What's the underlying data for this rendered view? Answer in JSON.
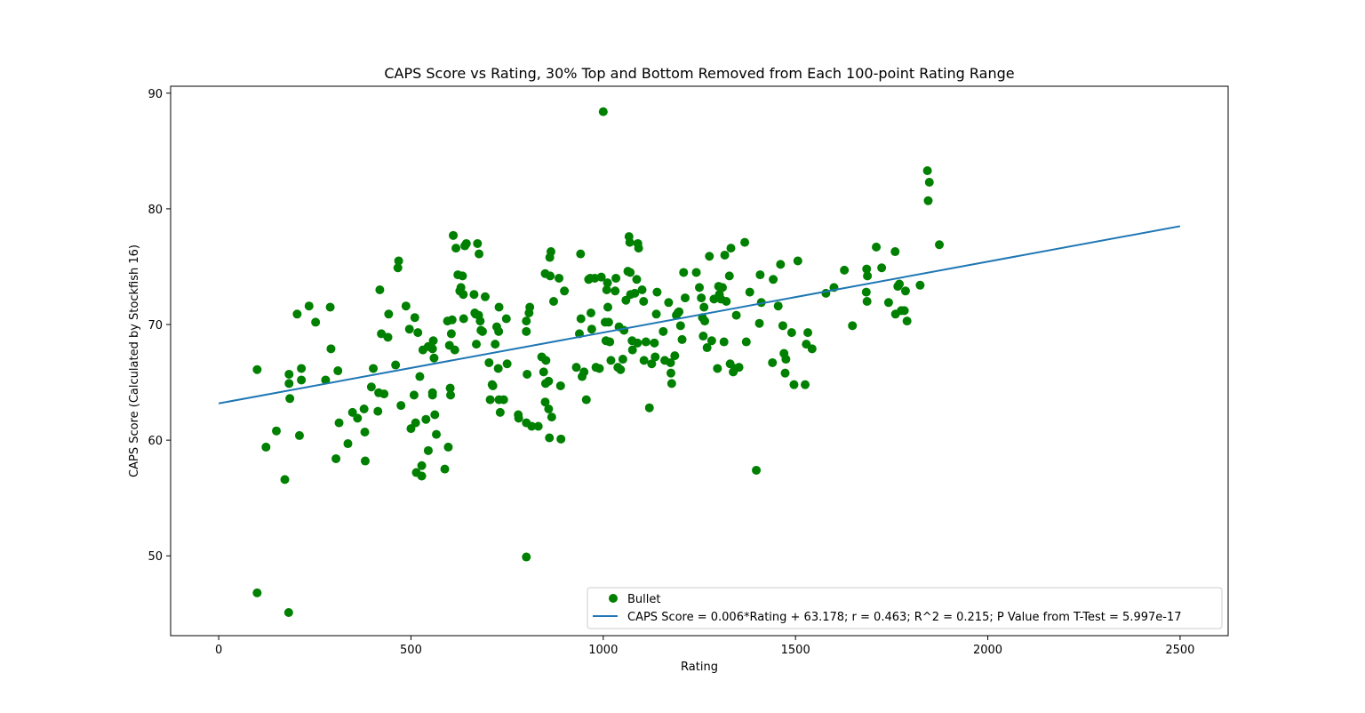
{
  "chart_data": {
    "type": "scatter",
    "title": "CAPS Score vs Rating, 30% Top and Bottom Removed from Each 100-point Rating Range",
    "xlabel": "Rating",
    "ylabel": "CAPS Score (Calculated by Stockfish 16)",
    "xlim": [
      -125,
      2625
    ],
    "ylim": [
      43.1,
      90.6
    ],
    "xticks": [
      0,
      500,
      1000,
      1500,
      2000,
      2500
    ],
    "yticks": [
      50,
      60,
      70,
      80,
      90
    ],
    "grid": false,
    "legend_position": "lower-right",
    "series": [
      {
        "name": "Bullet",
        "kind": "scatter",
        "color": "#008000",
        "points": [
          [
            100,
            66.1
          ],
          [
            100,
            46.8
          ],
          [
            123,
            59.4
          ],
          [
            150,
            60.8
          ],
          [
            172,
            56.6
          ],
          [
            182,
            45.1
          ],
          [
            183,
            65.7
          ],
          [
            183,
            64.9
          ],
          [
            185,
            63.6
          ],
          [
            204,
            70.9
          ],
          [
            210,
            60.4
          ],
          [
            215,
            66.2
          ],
          [
            215,
            65.2
          ],
          [
            235,
            71.6
          ],
          [
            252,
            70.2
          ],
          [
            278,
            65.2
          ],
          [
            290,
            71.5
          ],
          [
            292,
            67.9
          ],
          [
            305,
            58.4
          ],
          [
            310,
            66.0
          ],
          [
            313,
            61.5
          ],
          [
            336,
            59.7
          ],
          [
            348,
            62.4
          ],
          [
            361,
            61.9
          ],
          [
            378,
            62.7
          ],
          [
            380,
            60.7
          ],
          [
            381,
            58.2
          ],
          [
            397,
            64.6
          ],
          [
            402,
            66.2
          ],
          [
            414,
            62.5
          ],
          [
            416,
            64.1
          ],
          [
            419,
            73.0
          ],
          [
            423,
            69.2
          ],
          [
            430,
            64.0
          ],
          [
            440,
            68.9
          ],
          [
            442,
            70.9
          ],
          [
            460,
            66.5
          ],
          [
            466,
            74.9
          ],
          [
            468,
            75.5
          ],
          [
            474,
            63.0
          ],
          [
            487,
            71.6
          ],
          [
            496,
            69.6
          ],
          [
            500,
            61.0
          ],
          [
            508,
            63.9
          ],
          [
            510,
            70.6
          ],
          [
            512,
            61.5
          ],
          [
            514,
            57.2
          ],
          [
            518,
            69.3
          ],
          [
            523,
            65.5
          ],
          [
            528,
            57.8
          ],
          [
            528,
            56.9
          ],
          [
            531,
            67.8
          ],
          [
            539,
            61.8
          ],
          [
            545,
            59.1
          ],
          [
            545,
            68.1
          ],
          [
            556,
            63.9
          ],
          [
            556,
            64.1
          ],
          [
            556,
            67.9
          ],
          [
            558,
            68.6
          ],
          [
            560,
            67.1
          ],
          [
            562,
            62.2
          ],
          [
            566,
            60.5
          ],
          [
            588,
            57.5
          ],
          [
            595,
            70.3
          ],
          [
            597,
            59.4
          ],
          [
            600,
            68.2
          ],
          [
            602,
            64.5
          ],
          [
            603,
            63.9
          ],
          [
            605,
            69.2
          ],
          [
            607,
            70.4
          ],
          [
            610,
            77.7
          ],
          [
            614,
            67.8
          ],
          [
            617,
            76.6
          ],
          [
            622,
            74.3
          ],
          [
            627,
            72.9
          ],
          [
            630,
            73.2
          ],
          [
            634,
            74.2
          ],
          [
            636,
            72.6
          ],
          [
            637,
            70.5
          ],
          [
            640,
            76.8
          ],
          [
            644,
            77.0
          ],
          [
            664,
            72.6
          ],
          [
            666,
            71.0
          ],
          [
            668,
            70.9
          ],
          [
            670,
            68.3
          ],
          [
            673,
            77.0
          ],
          [
            676,
            70.8
          ],
          [
            677,
            76.1
          ],
          [
            680,
            70.3
          ],
          [
            682,
            69.5
          ],
          [
            686,
            69.4
          ],
          [
            693,
            72.4
          ],
          [
            703,
            66.7
          ],
          [
            706,
            63.5
          ],
          [
            711,
            64.8
          ],
          [
            713,
            64.7
          ],
          [
            719,
            68.3
          ],
          [
            723,
            69.8
          ],
          [
            727,
            66.2
          ],
          [
            728,
            69.4
          ],
          [
            729,
            71.5
          ],
          [
            729,
            63.5
          ],
          [
            732,
            62.4
          ],
          [
            741,
            63.5
          ],
          [
            748,
            70.5
          ],
          [
            750,
            66.6
          ],
          [
            779,
            62.2
          ],
          [
            780,
            61.9
          ],
          [
            800,
            49.9
          ],
          [
            800,
            69.4
          ],
          [
            800,
            70.3
          ],
          [
            800,
            61.5
          ],
          [
            802,
            65.7
          ],
          [
            807,
            71.0
          ],
          [
            809,
            71.5
          ],
          [
            814,
            61.2
          ],
          [
            831,
            61.2
          ],
          [
            840,
            67.2
          ],
          [
            845,
            65.9
          ],
          [
            849,
            63.3
          ],
          [
            849,
            74.4
          ],
          [
            850,
            64.9
          ],
          [
            851,
            66.9
          ],
          [
            858,
            62.7
          ],
          [
            858,
            65.1
          ],
          [
            860,
            60.2
          ],
          [
            861,
            75.8
          ],
          [
            862,
            74.2
          ],
          [
            864,
            76.3
          ],
          [
            866,
            62.0
          ],
          [
            871,
            72.0
          ],
          [
            885,
            74.0
          ],
          [
            889,
            64.7
          ],
          [
            890,
            60.1
          ],
          [
            899,
            72.9
          ],
          [
            930,
            66.3
          ],
          [
            938,
            69.2
          ],
          [
            941,
            76.1
          ],
          [
            942,
            70.5
          ],
          [
            945,
            65.5
          ],
          [
            950,
            65.9
          ],
          [
            956,
            63.5
          ],
          [
            962,
            73.9
          ],
          [
            966,
            74.0
          ],
          [
            968,
            71.0
          ],
          [
            970,
            69.6
          ],
          [
            978,
            74.0
          ],
          [
            981,
            66.3
          ],
          [
            990,
            66.2
          ],
          [
            995,
            74.1
          ],
          [
            1000,
            88.4
          ],
          [
            1005,
            70.2
          ],
          [
            1007,
            68.6
          ],
          [
            1009,
            73.0
          ],
          [
            1011,
            73.6
          ],
          [
            1012,
            71.5
          ],
          [
            1014,
            70.2
          ],
          [
            1017,
            68.5
          ],
          [
            1020,
            66.9
          ],
          [
            1031,
            72.9
          ],
          [
            1033,
            74.0
          ],
          [
            1038,
            66.3
          ],
          [
            1041,
            69.8
          ],
          [
            1045,
            66.1
          ],
          [
            1051,
            67.0
          ],
          [
            1054,
            69.5
          ],
          [
            1059,
            72.1
          ],
          [
            1064,
            74.6
          ],
          [
            1067,
            77.6
          ],
          [
            1069,
            77.1
          ],
          [
            1070,
            74.5
          ],
          [
            1071,
            72.6
          ],
          [
            1075,
            68.6
          ],
          [
            1076,
            67.8
          ],
          [
            1082,
            72.7
          ],
          [
            1087,
            73.9
          ],
          [
            1089,
            68.4
          ],
          [
            1090,
            77.0
          ],
          [
            1092,
            76.6
          ],
          [
            1101,
            73.0
          ],
          [
            1105,
            72.0
          ],
          [
            1106,
            66.9
          ],
          [
            1111,
            68.5
          ],
          [
            1120,
            62.8
          ],
          [
            1126,
            66.6
          ],
          [
            1133,
            68.4
          ],
          [
            1135,
            67.2
          ],
          [
            1138,
            70.9
          ],
          [
            1140,
            72.8
          ],
          [
            1156,
            69.4
          ],
          [
            1160,
            66.9
          ],
          [
            1170,
            71.9
          ],
          [
            1175,
            66.7
          ],
          [
            1176,
            65.8
          ],
          [
            1178,
            64.9
          ],
          [
            1186,
            67.3
          ],
          [
            1190,
            70.8
          ],
          [
            1194,
            71.0
          ],
          [
            1197,
            71.1
          ],
          [
            1201,
            69.9
          ],
          [
            1205,
            68.7
          ],
          [
            1209,
            74.5
          ],
          [
            1213,
            72.3
          ],
          [
            1242,
            74.5
          ],
          [
            1250,
            73.2
          ],
          [
            1255,
            72.3
          ],
          [
            1258,
            70.6
          ],
          [
            1260,
            69.0
          ],
          [
            1262,
            71.5
          ],
          [
            1264,
            70.3
          ],
          [
            1270,
            68.0
          ],
          [
            1276,
            75.9
          ],
          [
            1282,
            68.6
          ],
          [
            1288,
            72.2
          ],
          [
            1297,
            66.2
          ],
          [
            1300,
            73.3
          ],
          [
            1302,
            72.6
          ],
          [
            1306,
            72.2
          ],
          [
            1310,
            73.2
          ],
          [
            1314,
            68.5
          ],
          [
            1316,
            76.0
          ],
          [
            1320,
            72.0
          ],
          [
            1328,
            74.2
          ],
          [
            1330,
            66.6
          ],
          [
            1332,
            76.6
          ],
          [
            1338,
            65.9
          ],
          [
            1343,
            66.2
          ],
          [
            1346,
            70.8
          ],
          [
            1353,
            66.3
          ],
          [
            1368,
            77.1
          ],
          [
            1372,
            68.5
          ],
          [
            1381,
            72.8
          ],
          [
            1398,
            57.4
          ],
          [
            1406,
            70.1
          ],
          [
            1408,
            74.3
          ],
          [
            1411,
            71.9
          ],
          [
            1440,
            66.7
          ],
          [
            1442,
            73.9
          ],
          [
            1455,
            71.6
          ],
          [
            1461,
            75.2
          ],
          [
            1467,
            69.9
          ],
          [
            1470,
            67.5
          ],
          [
            1473,
            65.8
          ],
          [
            1475,
            67.0
          ],
          [
            1490,
            69.3
          ],
          [
            1496,
            64.8
          ],
          [
            1506,
            75.5
          ],
          [
            1525,
            64.8
          ],
          [
            1528,
            68.3
          ],
          [
            1532,
            69.3
          ],
          [
            1543,
            67.9
          ],
          [
            1579,
            72.7
          ],
          [
            1600,
            73.2
          ],
          [
            1627,
            74.7
          ],
          [
            1648,
            69.9
          ],
          [
            1684,
            72.8
          ],
          [
            1685,
            74.8
          ],
          [
            1686,
            72.0
          ],
          [
            1687,
            74.2
          ],
          [
            1710,
            76.7
          ],
          [
            1724,
            74.9
          ],
          [
            1742,
            71.9
          ],
          [
            1759,
            76.3
          ],
          [
            1760,
            70.9
          ],
          [
            1766,
            73.3
          ],
          [
            1770,
            73.5
          ],
          [
            1775,
            71.2
          ],
          [
            1783,
            71.2
          ],
          [
            1786,
            72.9
          ],
          [
            1790,
            70.3
          ],
          [
            1824,
            73.4
          ],
          [
            1843,
            83.3
          ],
          [
            1845,
            80.7
          ],
          [
            1848,
            82.3
          ],
          [
            1874,
            76.9
          ]
        ]
      },
      {
        "name": "CAPS Score = 0.006*Rating + 63.178; r = 0.463; R^2 = 0.215; P Value from T-Test = 5.997e-17",
        "kind": "line",
        "color": "#1f77b4",
        "x": [
          0,
          2500
        ],
        "y": [
          63.178,
          78.5
        ]
      }
    ]
  }
}
